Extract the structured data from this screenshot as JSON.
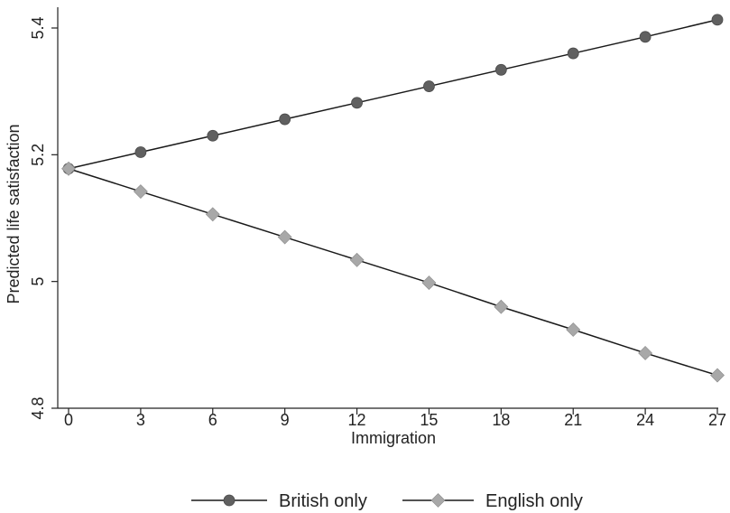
{
  "chart_data": {
    "type": "line",
    "title": "",
    "xlabel": "Immigration",
    "ylabel": "Predicted life satisfaction",
    "x": [
      0,
      3,
      6,
      9,
      12,
      15,
      18,
      21,
      24,
      27
    ],
    "xticks": [
      0,
      3,
      6,
      9,
      12,
      15,
      18,
      21,
      24,
      27
    ],
    "yticks": [
      4.8,
      5,
      5.2,
      5.4
    ],
    "ytick_labels": [
      "4.8",
      "5",
      "5.2",
      "5.4"
    ],
    "xlim": [
      0,
      27
    ],
    "ylim": [
      4.8,
      5.4
    ],
    "grid": false,
    "legend_position": "bottom",
    "series": [
      {
        "name": "British only",
        "marker": "circle",
        "color": "#606060",
        "values": [
          5.178,
          5.204,
          5.23,
          5.256,
          5.282,
          5.308,
          5.334,
          5.36,
          5.386,
          5.413
        ]
      },
      {
        "name": "English only",
        "marker": "diamond",
        "color": "#a8a8a8",
        "values": [
          5.178,
          5.142,
          5.106,
          5.07,
          5.034,
          4.998,
          4.96,
          4.924,
          4.887,
          4.852
        ]
      }
    ]
  }
}
